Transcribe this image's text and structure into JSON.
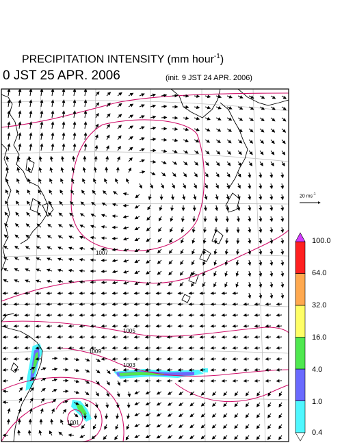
{
  "title": {
    "main": "PRECIPITATION INTENSITY (mm hour",
    "sup": "-1",
    "close": ")"
  },
  "time_label": "0 JST 25 APR. 2006",
  "init_label": "(init. 9 JST 24 APR. 2006)",
  "wind_reference": {
    "text": "20 ms",
    "sup": "-1"
  },
  "colorbar": {
    "levels": [
      "0.4",
      "1.0",
      "4.0",
      "16.0",
      "32.0",
      "64.0",
      "100.0"
    ],
    "colors": [
      "#4ff7ff",
      "#6a6aff",
      "#4fe84f",
      "#ffff66",
      "#ffa94f",
      "#ff2020",
      "#d23cff"
    ]
  },
  "contour_labels": [
    "1007",
    "1005",
    "1003",
    "1009",
    "1001"
  ],
  "colors": {
    "isobar": "#d0106a",
    "coast": "#000000",
    "grid": "#bdbdbd"
  }
}
